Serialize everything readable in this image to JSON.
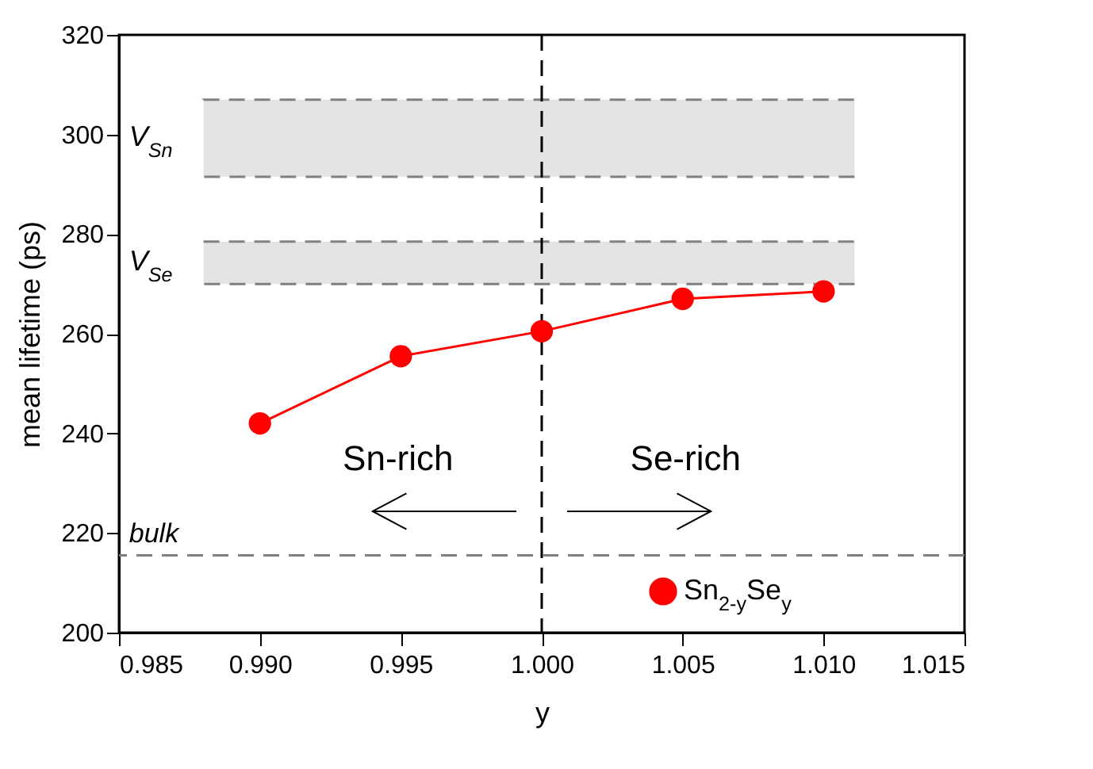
{
  "chart_data": {
    "type": "line",
    "xlabel": "y",
    "ylabel": "mean lifetime (ps)",
    "x": [
      0.99,
      0.995,
      1.0,
      1.005,
      1.01
    ],
    "series": [
      {
        "name": "Sn$_{2-y}$Se$_{y}$",
        "color": "#ff0000",
        "values": [
          242,
          255.5,
          260.5,
          267,
          268.5
        ]
      }
    ],
    "xlim": [
      0.985,
      1.015
    ],
    "xticks": [
      0.985,
      {
        "value": 0.99,
        "label": "0.990"
      },
      0.995,
      {
        "value": 1,
        "label": "1.000"
      },
      1.005,
      {
        "value": 1.01,
        "label": "1.010"
      },
      1.015
    ],
    "ylim": [
      200,
      320
    ],
    "yticks": [
      200,
      220,
      240,
      260,
      280,
      300,
      320
    ],
    "ref_lines": [
      {
        "axis": "x",
        "value": 1,
        "color": "#000000",
        "line_style": "dashed"
      },
      {
        "axis": "y",
        "value": 215.5,
        "label": "bulk",
        "color": "#808080",
        "line_style": "dashed"
      }
    ],
    "bands": [
      {
        "axis": "y",
        "from": 291.5,
        "to": 307,
        "label": "V$_{Sn}$",
        "color": "#e4e4e4"
      },
      {
        "axis": "y",
        "from": 270,
        "to": 278.5,
        "label": "V$_{Se}$",
        "color": "#e4e4e4"
      }
    ],
    "annotations": [
      "Sn-rich",
      "Se-rich"
    ],
    "legend": "bottom right",
    "marker": "circle",
    "line_style": "solid",
    "grid": false
  }
}
